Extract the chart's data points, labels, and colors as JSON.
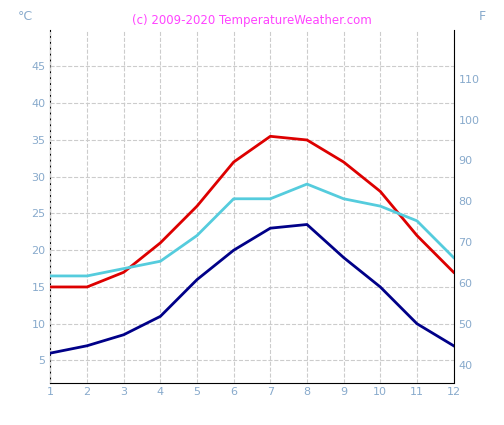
{
  "months": [
    1,
    2,
    3,
    4,
    5,
    6,
    7,
    8,
    9,
    10,
    11,
    12
  ],
  "air_temp_red": [
    15,
    15,
    17,
    21,
    26,
    32,
    35.5,
    35,
    32,
    28,
    22,
    17
  ],
  "water_temp_cyan": [
    16.5,
    16.5,
    17.5,
    18.5,
    22,
    27,
    27,
    29,
    27,
    26,
    24,
    19
  ],
  "min_temp_navy": [
    6,
    7,
    8.5,
    11,
    16,
    20,
    23,
    23.5,
    19,
    15,
    10,
    7
  ],
  "color_red": "#dd0000",
  "color_cyan": "#55ccdd",
  "color_navy": "#000088",
  "ylabel_left": "°C",
  "ylabel_right": "F",
  "title": "(c) 2009-2020 TemperatureWeather.com",
  "title_color": "#ff44ff",
  "ylim_left": [
    2,
    50
  ],
  "ylim_right": [
    35.6,
    122
  ],
  "yticks_left": [
    5,
    10,
    15,
    20,
    25,
    30,
    35,
    40,
    45
  ],
  "yticks_right": [
    40,
    50,
    60,
    70,
    80,
    90,
    100,
    110
  ],
  "xticks": [
    1,
    2,
    3,
    4,
    5,
    6,
    7,
    8,
    9,
    10,
    11,
    12
  ],
  "grid_color": "#cccccc",
  "background_color": "#ffffff",
  "tick_color": "#88aacc",
  "axis_color": "#000000",
  "line_width": 2.0,
  "title_fontsize": 8.5,
  "tick_fontsize": 8
}
